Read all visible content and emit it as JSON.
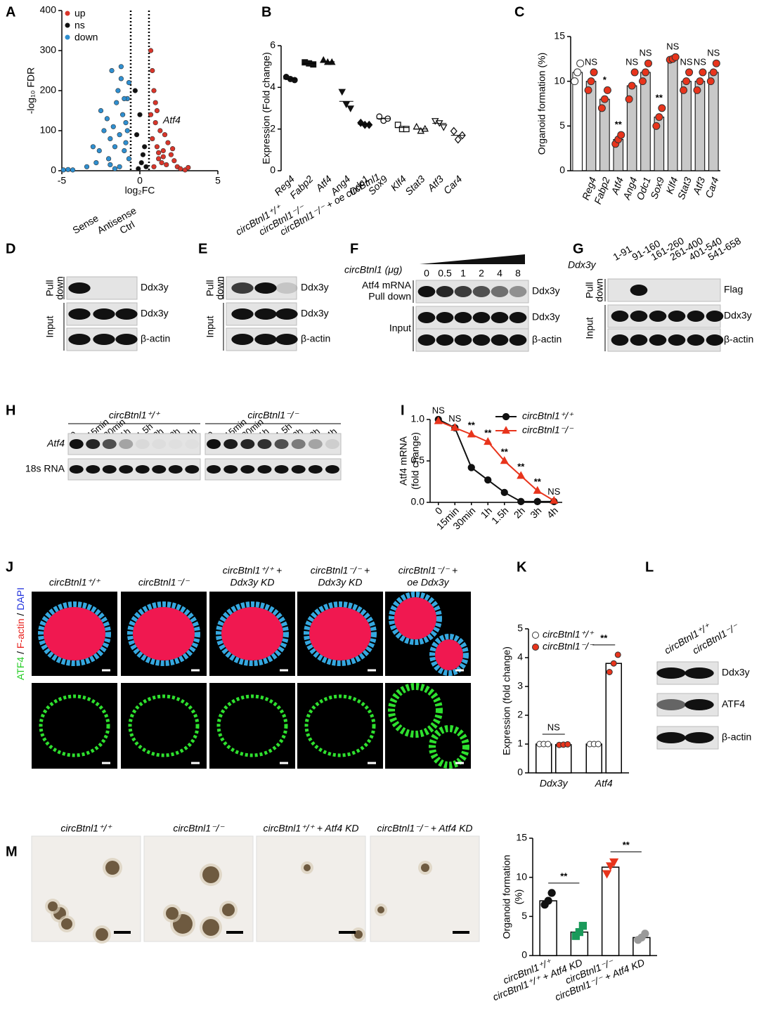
{
  "chart_data": [
    {
      "panel": "A",
      "type": "scatter",
      "xlabel": "log₂FC",
      "ylabel": "-log₁₀ FDR",
      "annotation": "Atf4",
      "xlim": [
        -5,
        5
      ],
      "xticks": [
        -5,
        0,
        5
      ],
      "ylim": [
        0,
        400
      ],
      "yticks": [
        0,
        100,
        200,
        300,
        400
      ],
      "vlines": [
        -0.585,
        0.585
      ],
      "series": [
        {
          "name": "up",
          "color": "#d9352a",
          "x": [
            0.7,
            0.8,
            0.9,
            1.0,
            1.1,
            1.2,
            1.3,
            1.4,
            1.5,
            1.6,
            1.8,
            2.0,
            2.2,
            2.4,
            2.6,
            2.9,
            3.1,
            0.8,
            1.0,
            1.2,
            0.9,
            1.5,
            0.7,
            1.1,
            2.1,
            1.7
          ],
          "values": [
            140,
            80,
            200,
            120,
            60,
            30,
            100,
            20,
            50,
            90,
            70,
            40,
            25,
            10,
            5,
            2,
            8,
            250,
            170,
            45,
            10,
            35,
            300,
            150,
            55,
            15
          ]
        },
        {
          "name": "ns",
          "color": "#111111",
          "x": [
            -0.3,
            0.0,
            0.2,
            -0.2,
            0.1,
            0.3,
            -0.1,
            0.4
          ],
          "values": [
            200,
            140,
            40,
            90,
            20,
            60,
            5,
            10
          ]
        },
        {
          "name": "down",
          "color": "#2f8fd0",
          "x": [
            -4.9,
            -4.6,
            -4.3,
            -3.4,
            -3.0,
            -2.8,
            -2.5,
            -2.3,
            -2.1,
            -2.0,
            -1.9,
            -1.8,
            -1.7,
            -1.6,
            -1.5,
            -1.4,
            -1.3,
            -1.2,
            -1.1,
            -1.0,
            -0.9,
            -0.8,
            -0.7,
            -1.6,
            -1.2,
            -0.9,
            -1.0,
            -1.3,
            -0.8,
            -0.7,
            -2.6,
            -1.9
          ],
          "values": [
            2,
            3,
            2,
            10,
            60,
            20,
            150,
            100,
            130,
            30,
            80,
            250,
            110,
            60,
            170,
            200,
            90,
            230,
            140,
            50,
            120,
            180,
            30,
            5,
            260,
            70,
            180,
            10,
            100,
            220,
            50,
            15
          ]
        }
      ]
    },
    {
      "panel": "B",
      "type": "dot",
      "ylabel": "Expression (Fold change)",
      "ylim": [
        0,
        6
      ],
      "yticks": [
        0,
        2,
        4,
        6
      ],
      "categories": [
        "Reg4",
        "Fabp2",
        "Atf4",
        "Ang4",
        "Odc1",
        "Sox9",
        "Klf4",
        "Stat3",
        "Atf3",
        "Car4"
      ],
      "points": [
        [
          4.5,
          4.4,
          4.35
        ],
        [
          5.2,
          5.15,
          5.1
        ],
        [
          5.3,
          5.2,
          5.2
        ],
        [
          3.8,
          3.2,
          3.0
        ],
        [
          2.3,
          2.2,
          2.2
        ],
        [
          2.6,
          2.4,
          2.5
        ],
        [
          2.2,
          2.0,
          2.0
        ],
        [
          2.1,
          1.9,
          2.0
        ],
        [
          2.4,
          2.3,
          2.1
        ],
        [
          1.9,
          1.5,
          1.7
        ]
      ],
      "means": [
        4.4,
        5.15,
        5.23,
        3.33,
        2.23,
        2.5,
        2.07,
        2.0,
        2.27,
        1.7
      ],
      "markers": [
        "circle",
        "square",
        "triangle",
        "triangle-down",
        "diamond",
        "circle",
        "square",
        "triangle",
        "triangle-down",
        "diamond"
      ],
      "filled": [
        true,
        true,
        true,
        true,
        true,
        false,
        false,
        false,
        false,
        false
      ],
      "highlight_index": 2,
      "highlight_color": "#e02020"
    },
    {
      "panel": "C",
      "type": "bar",
      "ylabel": "Organoid formation (%)",
      "ylim": [
        0,
        15
      ],
      "yticks": [
        0,
        5,
        10,
        15
      ],
      "categories": [
        null,
        "Reg4",
        "Fabp2",
        "Atf4",
        "Ang4",
        "Odc1",
        "Sox9",
        "Klf4",
        "Stat3",
        "Atf3",
        "Car4"
      ],
      "values": [
        11,
        10,
        8,
        3.5,
        9.5,
        11,
        6,
        12.5,
        10,
        10,
        11
      ],
      "points": [
        [
          10,
          11,
          12
        ],
        [
          9,
          10,
          11
        ],
        [
          7,
          8,
          9
        ],
        [
          3,
          3.5,
          4
        ],
        [
          8,
          9.5,
          11
        ],
        [
          10,
          11,
          12
        ],
        [
          5,
          6,
          7
        ],
        [
          12.4,
          12.5,
          12.7
        ],
        [
          9,
          10,
          11
        ],
        [
          9,
          10,
          11
        ],
        [
          10,
          11,
          12
        ]
      ],
      "sig": [
        null,
        "NS",
        "*",
        "**",
        "NS",
        "NS",
        "**",
        "NS",
        "NS",
        "NS",
        "NS"
      ],
      "bar_colors": [
        "#ffffff",
        "#c8c8c8",
        "#c8c8c8",
        "#c8c8c8",
        "#c8c8c8",
        "#c8c8c8",
        "#c8c8c8",
        "#c8c8c8",
        "#c8c8c8",
        "#c8c8c8",
        "#c8c8c8"
      ],
      "point_colors": [
        "#ffffff",
        "#e8341c",
        "#e8341c",
        "#e8341c",
        "#e8341c",
        "#e8341c",
        "#e8341c",
        "#e8341c",
        "#e8341c",
        "#e8341c",
        "#e8341c"
      ],
      "highlight_index": 3,
      "highlight_color": "#e02020"
    },
    {
      "panel": "I",
      "type": "line",
      "ylabel": [
        "Atf4 mRNA",
        "(fold change)"
      ],
      "ylim": [
        0,
        1.0
      ],
      "yticks": [
        {
          "value": 0,
          "label": "0.0"
        },
        0.5,
        {
          "value": 1.0,
          "label": "1.0"
        }
      ],
      "categories": [
        "0",
        "15min",
        "30min",
        "1h",
        "1.5h",
        "2h",
        "3h",
        "4h"
      ],
      "series": [
        {
          "name": "circBtnl1⁺/⁺",
          "color": "#111111",
          "marker": "circle",
          "values": [
            1.0,
            0.9,
            0.42,
            0.27,
            0.12,
            0.01,
            0.01,
            0.01
          ]
        },
        {
          "name": "circBtnl1⁻/⁻",
          "color": "#e8341c",
          "marker": "triangle",
          "values": [
            0.98,
            0.9,
            0.82,
            0.73,
            0.5,
            0.32,
            0.14,
            0.02
          ]
        }
      ],
      "sig": [
        "NS",
        "NS",
        "**",
        "**",
        "**",
        "**",
        "**",
        "NS"
      ]
    },
    {
      "panel": "K",
      "type": "grouped-bar",
      "ylabel": "Expression (fold change)",
      "ylim": [
        0,
        5
      ],
      "yticks": [
        0,
        1,
        2,
        3,
        4,
        5
      ],
      "categories": [
        "Ddx3y",
        "Atf4"
      ],
      "series": [
        {
          "name": "circBtnl1⁺/⁺",
          "color": "#ffffff",
          "values": [
            1,
            1
          ],
          "points": [
            [
              1,
              1,
              1
            ],
            [
              1,
              1,
              1
            ]
          ]
        },
        {
          "name": "circBtnl1⁻/⁻",
          "color": "#e8341c",
          "values": [
            0.98,
            3.8
          ],
          "points": [
            [
              0.97,
              0.98,
              0.99
            ],
            [
              3.5,
              3.8,
              4.1
            ]
          ]
        }
      ],
      "sig": [
        "NS",
        "**"
      ]
    },
    {
      "panel": "M",
      "type": "bar",
      "ylabel": [
        "Organoid formation",
        "(%)"
      ],
      "ylim": [
        0,
        15
      ],
      "yticks": [
        0,
        5,
        10,
        15
      ],
      "categories": [
        "circBtnl1⁺/⁺",
        "circBtnl1⁺/⁺ + Atf4 KD",
        "circBtnl1⁻/⁻",
        "circBtnl1⁻/⁻ + Atf4 KD"
      ],
      "values": [
        7,
        3,
        11.3,
        2.3
      ],
      "points": [
        [
          6.5,
          7,
          8
        ],
        [
          2.5,
          3,
          3.8
        ],
        [
          10.5,
          11.5,
          12
        ],
        [
          2,
          2.3,
          2.8
        ]
      ],
      "point_colors": [
        "#111111",
        "#1a9a5a",
        "#e8341c",
        "#9a9a9a"
      ],
      "markers": [
        "circle",
        "square",
        "triangle-down",
        "circle"
      ],
      "sig": [
        "**",
        "**"
      ]
    }
  ],
  "blots": [
    {
      "panel": "D",
      "lanes": [
        "Sense",
        "Antisense",
        "Ctrl"
      ],
      "groups": [
        {
          "label": [
            "Pull",
            "down"
          ],
          "rows": [
            {
              "protein": "Ddx3y",
              "bands": [
                1,
                0,
                0
              ]
            }
          ]
        },
        {
          "label": [
            "Input"
          ],
          "rows": [
            {
              "protein": "Ddx3y",
              "bands": [
                1,
                1,
                1
              ]
            },
            {
              "protein": "β-actin",
              "bands": [
                1,
                1,
                1
              ]
            }
          ]
        }
      ]
    },
    {
      "panel": "E",
      "lanes": [
        "circBtnl1⁺/⁺",
        "circBtnl1⁻/⁻",
        "circBtnl1⁻/⁻ + oe circBtnl1"
      ],
      "groups": [
        {
          "label": [
            "Pull",
            "down"
          ],
          "rows": [
            {
              "protein": "Ddx3y",
              "bands": [
                0.8,
                1,
                0.15
              ]
            }
          ]
        },
        {
          "label": [
            "Input"
          ],
          "rows": [
            {
              "protein": "Ddx3y",
              "bands": [
                1,
                1,
                1
              ]
            },
            {
              "protein": "β-actin",
              "bands": [
                1,
                1,
                1
              ]
            }
          ]
        }
      ]
    },
    {
      "panel": "F",
      "header": "circBtnl1 (μg)",
      "lanes": [
        "0",
        "0.5",
        "1",
        "2",
        "4",
        "8"
      ],
      "groups": [
        {
          "label": [
            "Atf4 mRNA",
            "Pull down"
          ],
          "rows": [
            {
              "protein": "Ddx3y",
              "bands": [
                1,
                0.9,
                0.8,
                0.7,
                0.55,
                0.4
              ]
            }
          ]
        },
        {
          "label": [
            "Input"
          ],
          "rows": [
            {
              "protein": "Ddx3y",
              "bands": [
                1,
                1,
                1,
                1,
                1,
                1
              ]
            },
            {
              "protein": "β-actin",
              "bands": [
                1,
                1,
                1,
                1,
                1,
                1
              ]
            }
          ]
        }
      ]
    },
    {
      "panel": "G",
      "header": "Ddx3y",
      "lanes": [
        "1-91",
        "91-160",
        "161-260",
        "261-400",
        "401-540",
        "541-658"
      ],
      "groups": [
        {
          "label": [
            "Pull",
            "down"
          ],
          "rows": [
            {
              "protein": "Flag",
              "bands": [
                0,
                1,
                0,
                0,
                0,
                0
              ]
            }
          ]
        },
        {
          "label": [
            "Input"
          ],
          "rows": [
            {
              "protein": "Ddx3y",
              "bands": [
                1,
                1,
                1,
                1,
                1,
                1
              ]
            },
            {
              "protein": "β-actin",
              "bands": [
                1,
                1,
                1,
                1,
                1,
                1
              ]
            }
          ]
        }
      ]
    },
    {
      "panel": "L",
      "lanes": [
        "circBtnl1⁺/⁺",
        "circBtnl1⁻/⁻"
      ],
      "groups": [
        {
          "label": null,
          "rows": [
            {
              "protein": "Ddx3y",
              "bands": [
                1,
                1
              ]
            },
            {
              "protein": "ATF4",
              "bands": [
                0.6,
                1
              ]
            },
            {
              "protein": "β-actin",
              "bands": [
                1,
                1
              ]
            }
          ]
        }
      ]
    }
  ],
  "northern": {
    "panel": "H",
    "lane_groups": [
      {
        "label": "circBtnl1⁺/⁺",
        "lanes": [
          "0",
          "15min",
          "30min",
          "1h",
          "1.5h",
          "2h",
          "3h",
          "4h"
        ]
      },
      {
        "label": "circBtnl1⁻/⁻",
        "lanes": [
          "0",
          "15min",
          "30min",
          "1h",
          "1.5h",
          "2h",
          "3h",
          "4h"
        ]
      }
    ],
    "rows": [
      {
        "label": "Atf4",
        "bands": [
          1,
          0.9,
          0.7,
          0.3,
          0.05,
          0.03,
          0.02,
          0.02,
          1,
          0.95,
          0.9,
          0.85,
          0.7,
          0.5,
          0.3,
          0.1
        ]
      },
      {
        "label": "18s RNA",
        "bands": [
          1,
          1,
          1,
          1,
          1,
          1,
          1,
          1,
          1,
          1,
          1,
          1,
          1,
          1,
          1,
          1
        ]
      }
    ]
  },
  "images": [
    {
      "panel": "J",
      "columns": [
        [
          "circBtnl1⁺/⁺"
        ],
        [
          "circBtnl1⁻/⁻"
        ],
        [
          "circBtnl1⁺/⁺ +",
          "Ddx3y KD"
        ],
        [
          "circBtnl1⁻/⁻ +",
          "Ddx3y KD"
        ],
        [
          "circBtnl1⁻/⁻ +",
          "oe Ddx3y"
        ]
      ],
      "stain": [
        "ATF4",
        " / ",
        "F-actin",
        " / ",
        "DAPI"
      ],
      "stain_colors": [
        "#22cc22",
        "#000000",
        "#e8201c",
        "#000000",
        "#2233dd"
      ]
    },
    {
      "panel": "M",
      "columns": [
        [
          "circBtnl1⁺/⁺"
        ],
        [
          "circBtnl1⁻/⁻"
        ],
        [
          "circBtnl1⁺/⁺ + Atf4 KD"
        ],
        [
          "circBtnl1⁻/⁻ + Atf4 KD"
        ]
      ]
    }
  ]
}
